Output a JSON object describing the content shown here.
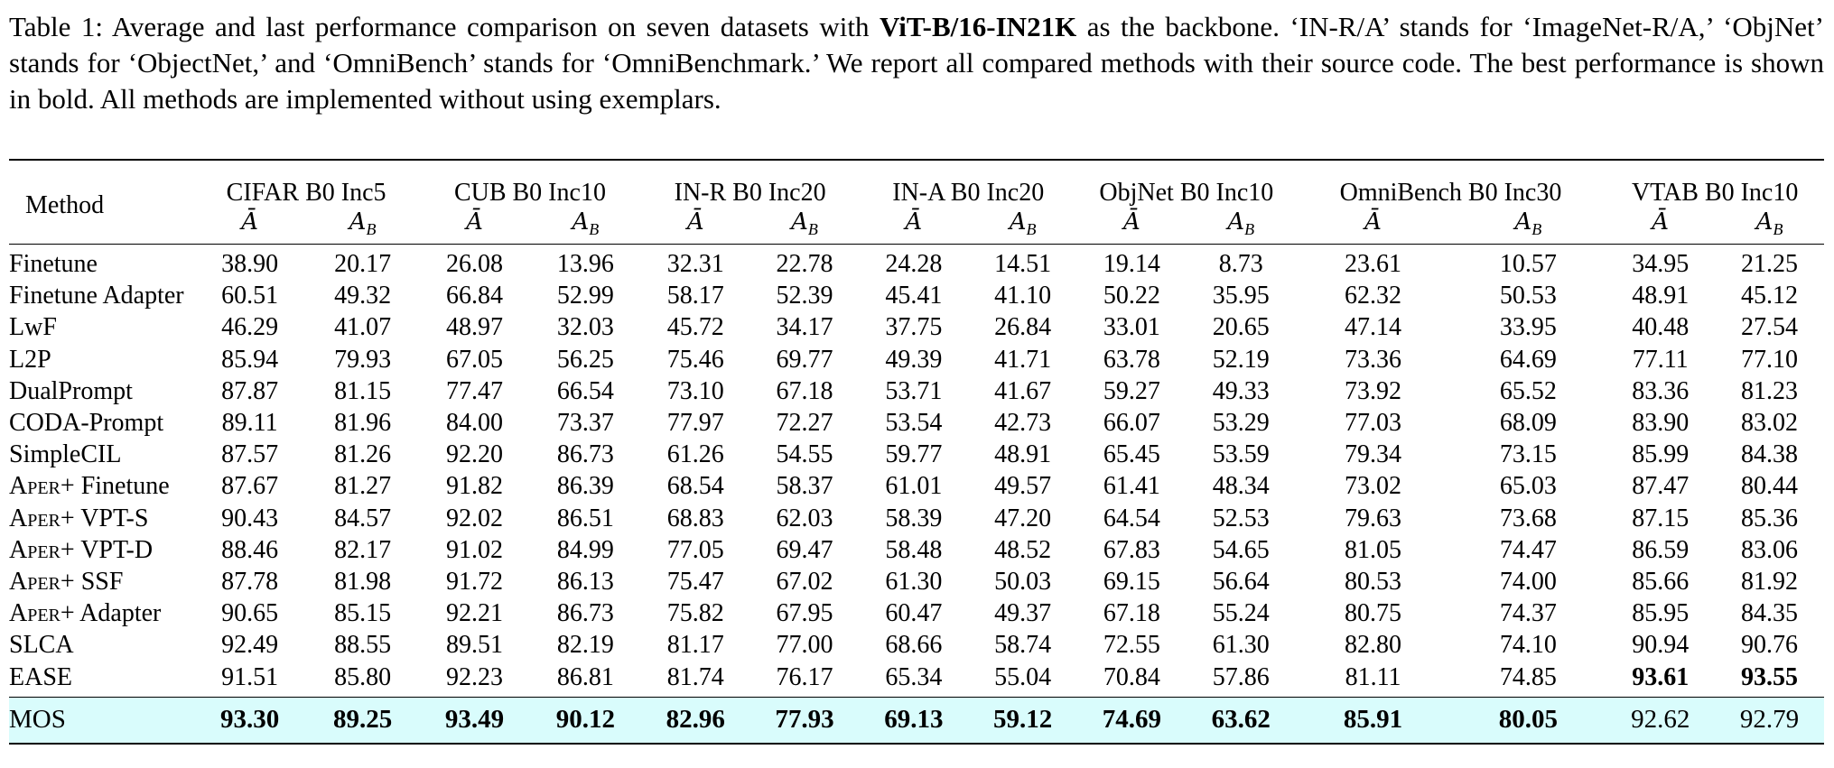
{
  "caption": {
    "lead": "Table 1: Average and last performance comparison on seven datasets with ",
    "backbone": "ViT-B/16-IN21K",
    "rest": " as the backbone. ‘IN-R/A’ stands for ‘ImageNet-R/A,’ ‘ObjNet’ stands for ‘ObjectNet,’ and ‘OmniBench’ stands for ‘OmniBenchmark.’ We report all compared methods with their source code. The best performance is shown in bold. All methods are implemented without using exemplars."
  },
  "table": {
    "method_header": "Method",
    "metric_avg": "Ā",
    "metric_last_base": "A",
    "metric_last_sub": "B",
    "datasets": [
      "CIFAR B0 Inc5",
      "CUB B0 Inc10",
      "IN-R B0 Inc20",
      "IN-A B0 Inc20",
      "ObjNet B0 Inc10",
      "OmniBench B0 Inc30",
      "VTAB B0 Inc10"
    ],
    "rows": [
      {
        "prefix": "",
        "method": "Finetune",
        "values": [
          "38.90",
          "20.17",
          "26.08",
          "13.96",
          "32.31",
          "22.78",
          "24.28",
          "14.51",
          "19.14",
          "8.73",
          "23.61",
          "10.57",
          "34.95",
          "21.25"
        ]
      },
      {
        "prefix": "",
        "method": "Finetune Adapter",
        "values": [
          "60.51",
          "49.32",
          "66.84",
          "52.99",
          "58.17",
          "52.39",
          "45.41",
          "41.10",
          "50.22",
          "35.95",
          "62.32",
          "50.53",
          "48.91",
          "45.12"
        ]
      },
      {
        "prefix": "",
        "method": "LwF",
        "values": [
          "46.29",
          "41.07",
          "48.97",
          "32.03",
          "45.72",
          "34.17",
          "37.75",
          "26.84",
          "33.01",
          "20.65",
          "47.14",
          "33.95",
          "40.48",
          "27.54"
        ]
      },
      {
        "prefix": "",
        "method": "L2P",
        "values": [
          "85.94",
          "79.93",
          "67.05",
          "56.25",
          "75.46",
          "69.77",
          "49.39",
          "41.71",
          "63.78",
          "52.19",
          "73.36",
          "64.69",
          "77.11",
          "77.10"
        ]
      },
      {
        "prefix": "",
        "method": "DualPrompt",
        "values": [
          "87.87",
          "81.15",
          "77.47",
          "66.54",
          "73.10",
          "67.18",
          "53.71",
          "41.67",
          "59.27",
          "49.33",
          "73.92",
          "65.52",
          "83.36",
          "81.23"
        ]
      },
      {
        "prefix": "",
        "method": "CODA-Prompt",
        "values": [
          "89.11",
          "81.96",
          "84.00",
          "73.37",
          "77.97",
          "72.27",
          "53.54",
          "42.73",
          "66.07",
          "53.29",
          "77.03",
          "68.09",
          "83.90",
          "83.02"
        ]
      },
      {
        "prefix": "",
        "method": "SimpleCIL",
        "values": [
          "87.57",
          "81.26",
          "92.20",
          "86.73",
          "61.26",
          "54.55",
          "59.77",
          "48.91",
          "65.45",
          "53.59",
          "79.34",
          "73.15",
          "85.99",
          "84.38"
        ]
      },
      {
        "prefix": "Aper+",
        "method": "Finetune",
        "values": [
          "87.67",
          "81.27",
          "91.82",
          "86.39",
          "68.54",
          "58.37",
          "61.01",
          "49.57",
          "61.41",
          "48.34",
          "73.02",
          "65.03",
          "87.47",
          "80.44"
        ]
      },
      {
        "prefix": "Aper+",
        "method": "VPT-S",
        "values": [
          "90.43",
          "84.57",
          "92.02",
          "86.51",
          "68.83",
          "62.03",
          "58.39",
          "47.20",
          "64.54",
          "52.53",
          "79.63",
          "73.68",
          "87.15",
          "85.36"
        ]
      },
      {
        "prefix": "Aper+",
        "method": "VPT-D",
        "values": [
          "88.46",
          "82.17",
          "91.02",
          "84.99",
          "77.05",
          "69.47",
          "58.48",
          "48.52",
          "67.83",
          "54.65",
          "81.05",
          "74.47",
          "86.59",
          "83.06"
        ]
      },
      {
        "prefix": "Aper+",
        "method": "SSF",
        "values": [
          "87.78",
          "81.98",
          "91.72",
          "86.13",
          "75.47",
          "67.02",
          "61.30",
          "50.03",
          "69.15",
          "56.64",
          "80.53",
          "74.00",
          "85.66",
          "81.92"
        ]
      },
      {
        "prefix": "Aper+",
        "method": "Adapter",
        "values": [
          "90.65",
          "85.15",
          "92.21",
          "86.73",
          "75.82",
          "67.95",
          "60.47",
          "49.37",
          "67.18",
          "55.24",
          "80.75",
          "74.37",
          "85.95",
          "84.35"
        ]
      },
      {
        "prefix": "",
        "method": "SLCA",
        "values": [
          "92.49",
          "88.55",
          "89.51",
          "82.19",
          "81.17",
          "77.00",
          "68.66",
          "58.74",
          "72.55",
          "61.30",
          "82.80",
          "74.10",
          "90.94",
          "90.76"
        ]
      },
      {
        "prefix": "",
        "method": "EASE",
        "values": [
          "91.51",
          "85.80",
          "92.23",
          "86.81",
          "81.74",
          "76.17",
          "65.34",
          "55.04",
          "70.84",
          "57.86",
          "81.11",
          "74.85",
          "93.61",
          "93.55"
        ],
        "bold": [
          12,
          13
        ]
      }
    ],
    "ours": {
      "method": "MOS",
      "values": [
        "93.30",
        "89.25",
        "93.49",
        "90.12",
        "82.96",
        "77.93",
        "69.13",
        "59.12",
        "74.69",
        "63.62",
        "85.91",
        "80.05",
        "92.62",
        "92.79"
      ],
      "bold": [
        0,
        1,
        2,
        3,
        4,
        5,
        6,
        7,
        8,
        9,
        10,
        11
      ]
    },
    "highlight_color": "#d9fcfc"
  }
}
